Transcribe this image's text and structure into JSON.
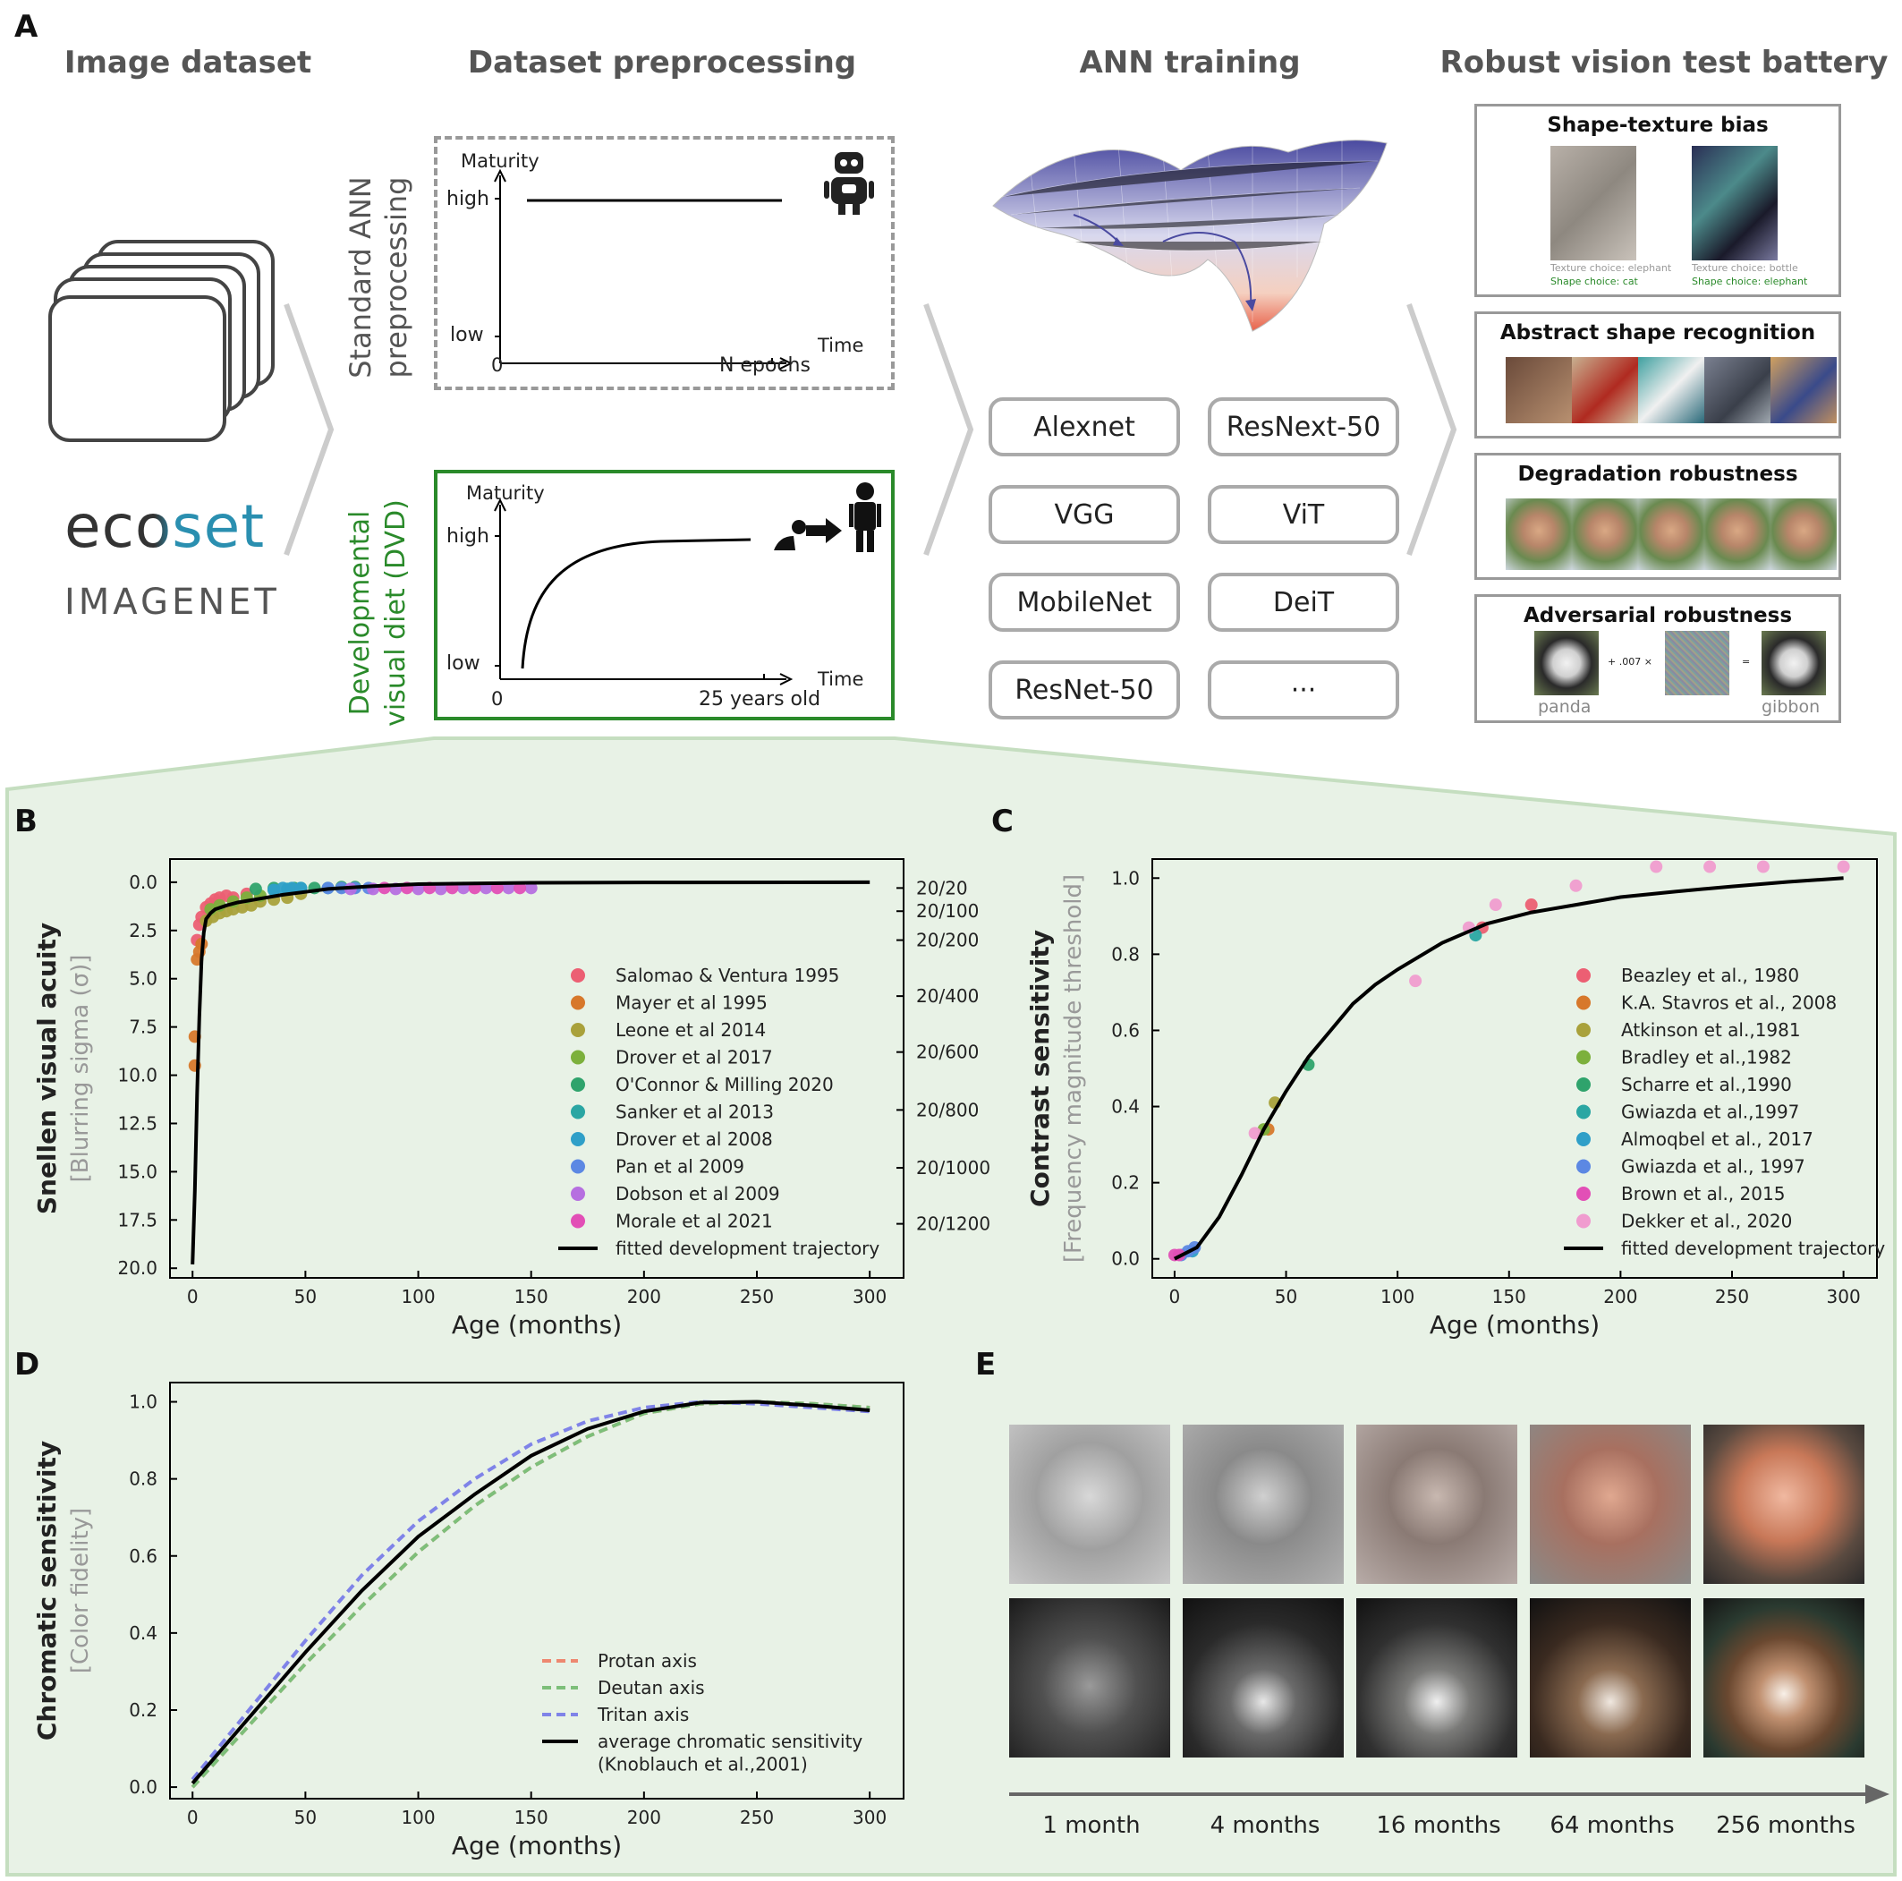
{
  "panel_letters": {
    "a": "A",
    "b": "B",
    "c": "C",
    "d": "D",
    "e": "E"
  },
  "section_titles": {
    "image_dataset": "Image dataset",
    "preprocessing": "Dataset preprocessing",
    "training": "ANN training",
    "battery": "Robust vision test battery"
  },
  "datasets": {
    "ecoset": "ecoset",
    "imagenet": "IMAGENET"
  },
  "standard": {
    "side_label_1": "Standard ANN",
    "side_label_2": "preprocessing",
    "y_title": "Maturity",
    "high": "high",
    "low": "low",
    "zero": "0",
    "x_title": "Time",
    "x_end": "N epochs"
  },
  "dvd": {
    "side_label_1": "Developmental",
    "side_label_2": "visual diet (DVD)",
    "y_title": "Maturity",
    "high": "high",
    "low": "low",
    "zero": "0",
    "x_title": "Time",
    "x_end": "25 years old"
  },
  "networks": [
    "Alexnet",
    "ResNext-50",
    "VGG",
    "ViT",
    "MobileNet",
    "DeiT",
    "ResNet-50",
    "···"
  ],
  "battery": {
    "shape_texture": {
      "title": "Shape-texture bias",
      "left_texture": "Texture choice: elephant",
      "left_shape": "Shape choice: cat",
      "right_texture": "Texture choice: bottle",
      "right_shape": "Shape choice: elephant"
    },
    "abstract": {
      "title": "Abstract shape recognition"
    },
    "degradation": {
      "title": "Degradation robustness"
    },
    "adversarial": {
      "title": "Adversarial robustness",
      "op": "+ .007 ×",
      "eq": "=",
      "left_label": "panda",
      "right_label": "gibbon"
    }
  },
  "colors": {
    "green_bg": "#e8f2e6",
    "green_border": "#c5dec0",
    "dvd_green": "#2a8a2a",
    "gray_border": "#aaaaaa"
  },
  "chart_data": [
    {
      "id": "B",
      "type": "scatter",
      "ylabel": "Snellen visual acuity",
      "ylabel2": "[Blurring sigma (σ)]",
      "xlabel": "Age (months)",
      "xlim": [
        -10,
        315
      ],
      "ylim": [
        20.5,
        -1.2
      ],
      "y_inverted": true,
      "xticks": [
        0,
        50,
        100,
        150,
        200,
        250,
        300
      ],
      "yticks": [
        "0.0",
        "2.5",
        "5.0",
        "7.5",
        "10.0",
        "12.5",
        "15.0",
        "17.5",
        "20.0"
      ],
      "right_ticks": [
        {
          "label": "20/20",
          "y": 0.3
        },
        {
          "label": "20/100",
          "y": 1.5
        },
        {
          "label": "20/200",
          "y": 3.0
        },
        {
          "label": "20/400",
          "y": 5.9
        },
        {
          "label": "20/600",
          "y": 8.8
        },
        {
          "label": "20/800",
          "y": 11.8
        },
        {
          "label": "20/1000",
          "y": 14.8
        },
        {
          "label": "20/1200",
          "y": 17.7
        }
      ],
      "series": [
        {
          "name": "Salomao & Ventura 1995",
          "color": "#ec5f73",
          "points": [
            [
              2,
              3
            ],
            [
              3,
              2.2
            ],
            [
              4,
              1.8
            ],
            [
              6,
              1.3
            ],
            [
              8,
              1.1
            ],
            [
              10,
              0.9
            ],
            [
              12,
              0.8
            ],
            [
              15,
              0.7
            ],
            [
              18,
              0.8
            ],
            [
              24,
              0.6
            ]
          ]
        },
        {
          "name": "Mayer et al 1995",
          "color": "#d7782b",
          "points": [
            [
              1,
              9.5
            ],
            [
              1,
              8
            ],
            [
              2,
              4
            ],
            [
              3,
              3.6
            ],
            [
              4,
              3.2
            ]
          ]
        },
        {
          "name": "Leone et al 2014",
          "color": "#a9a13b",
          "points": [
            [
              6,
              2
            ],
            [
              9,
              1.8
            ],
            [
              12,
              1.6
            ],
            [
              15,
              1.5
            ],
            [
              18,
              1.4
            ],
            [
              22,
              1.3
            ],
            [
              26,
              1.2
            ],
            [
              30,
              1.0
            ],
            [
              36,
              0.9
            ],
            [
              42,
              0.8
            ],
            [
              48,
              0.6
            ]
          ]
        },
        {
          "name": "Drover et al 2017",
          "color": "#7cb03c",
          "points": [
            [
              8,
              1.4
            ],
            [
              12,
              1.2
            ],
            [
              18,
              1.0
            ],
            [
              24,
              0.8
            ],
            [
              30,
              0.7
            ]
          ]
        },
        {
          "name": "O'Connor & Milling 2020",
          "color": "#2fa36c",
          "points": [
            [
              28,
              0.35
            ],
            [
              36,
              0.3
            ],
            [
              45,
              0.3
            ],
            [
              54,
              0.3
            ],
            [
              66,
              0.25
            ],
            [
              72,
              0.25
            ]
          ]
        },
        {
          "name": "Sanker et al 2013",
          "color": "#2aa6a3",
          "points": [
            [
              36,
              0.4
            ],
            [
              42,
              0.35
            ],
            [
              48,
              0.3
            ],
            [
              60,
              0.3
            ]
          ]
        },
        {
          "name": "Drover et al 2008",
          "color": "#2f9fc8",
          "points": [
            [
              36,
              0.4
            ],
            [
              40,
              0.3
            ],
            [
              44,
              0.3
            ],
            [
              48,
              0.3
            ]
          ]
        },
        {
          "name": "Pan et al 2009",
          "color": "#5c88e3",
          "points": [
            [
              60,
              0.3
            ],
            [
              66,
              0.3
            ],
            [
              72,
              0.3
            ],
            [
              78,
              0.3
            ]
          ]
        },
        {
          "name": "Dobson et al 2009",
          "color": "#b66fe0",
          "points": [
            [
              70,
              0.35
            ],
            [
              80,
              0.35
            ],
            [
              90,
              0.35
            ],
            [
              100,
              0.35
            ],
            [
              110,
              0.35
            ],
            [
              120,
              0.3
            ],
            [
              130,
              0.3
            ],
            [
              140,
              0.3
            ],
            [
              150,
              0.3
            ]
          ]
        },
        {
          "name": "Morale et al 2021",
          "color": "#e24fb6",
          "points": [
            [
              85,
              0.3
            ],
            [
              95,
              0.3
            ],
            [
              105,
              0.3
            ],
            [
              115,
              0.3
            ],
            [
              125,
              0.3
            ],
            [
              135,
              0.3
            ],
            [
              145,
              0.3
            ]
          ]
        }
      ],
      "fit": {
        "name": "fitted development trajectory",
        "points": [
          [
            0,
            19.8
          ],
          [
            1,
            16
          ],
          [
            2,
            11
          ],
          [
            3,
            7
          ],
          [
            4,
            4
          ],
          [
            5,
            2.6
          ],
          [
            6,
            1.9
          ],
          [
            8,
            1.6
          ],
          [
            10,
            1.4
          ],
          [
            15,
            1.2
          ],
          [
            20,
            1.05
          ],
          [
            30,
            0.85
          ],
          [
            40,
            0.65
          ],
          [
            50,
            0.5
          ],
          [
            60,
            0.35
          ],
          [
            80,
            0.2
          ],
          [
            100,
            0.1
          ],
          [
            150,
            0.03
          ],
          [
            200,
            0.01
          ],
          [
            300,
            0.0
          ]
        ]
      }
    },
    {
      "id": "C",
      "type": "scatter",
      "ylabel": "Contrast sensitivity",
      "ylabel2": "[Frequency magnitude threshold]",
      "xlabel": "Age (months)",
      "xlim": [
        -10,
        315
      ],
      "ylim": [
        -0.05,
        1.05
      ],
      "xticks": [
        0,
        50,
        100,
        150,
        200,
        250,
        300
      ],
      "yticks": [
        "0.0",
        "0.2",
        "0.4",
        "0.6",
        "0.8",
        "1.0"
      ],
      "series": [
        {
          "name": "Beazley et al., 1980",
          "color": "#ec5f73",
          "points": [
            [
              138,
              0.87
            ],
            [
              160,
              0.93
            ]
          ]
        },
        {
          "name": "K.A. Stavros et al., 2008",
          "color": "#d7782b",
          "points": [
            [
              42,
              0.34
            ]
          ]
        },
        {
          "name": "Atkinson et al.,1981",
          "color": "#a9a13b",
          "points": [
            [
              45,
              0.41
            ]
          ]
        },
        {
          "name": "Bradley et al.,1982",
          "color": "#7cb03c",
          "points": [
            [
              40,
              0.34
            ]
          ]
        },
        {
          "name": "Scharre et al.,1990",
          "color": "#2fa36c",
          "points": [
            [
              60,
              0.51
            ]
          ]
        },
        {
          "name": "Gwiazda et al.,1997",
          "color": "#2aa6a3",
          "points": [
            [
              135,
              0.85
            ]
          ]
        },
        {
          "name": "Almoqbel et al., 2017",
          "color": "#2f9fc8",
          "points": [
            [
              8,
              0.02
            ]
          ]
        },
        {
          "name": "Gwiazda et al., 1997",
          "color": "#5c88e3",
          "points": [
            [
              3,
              0.01
            ],
            [
              6,
              0.02
            ],
            [
              9,
              0.03
            ]
          ]
        },
        {
          "name": "Brown et al., 2015",
          "color": "#e24fb6",
          "points": [
            [
              0,
              0.01
            ],
            [
              2,
              0.01
            ]
          ]
        },
        {
          "name": "Dekker et al., 2020",
          "color": "#f09ccf",
          "points": [
            [
              36,
              0.33
            ],
            [
              108,
              0.73
            ],
            [
              132,
              0.87
            ],
            [
              144,
              0.93
            ],
            [
              180,
              0.98
            ],
            [
              216,
              1.03
            ],
            [
              240,
              1.03
            ],
            [
              264,
              1.03
            ],
            [
              300,
              1.03
            ]
          ]
        }
      ],
      "fit": {
        "name": "fitted development trajectory",
        "points": [
          [
            0,
            0.0
          ],
          [
            10,
            0.03
          ],
          [
            20,
            0.11
          ],
          [
            30,
            0.22
          ],
          [
            40,
            0.34
          ],
          [
            50,
            0.44
          ],
          [
            60,
            0.53
          ],
          [
            70,
            0.6
          ],
          [
            80,
            0.67
          ],
          [
            90,
            0.72
          ],
          [
            100,
            0.76
          ],
          [
            120,
            0.83
          ],
          [
            140,
            0.88
          ],
          [
            160,
            0.91
          ],
          [
            180,
            0.93
          ],
          [
            200,
            0.95
          ],
          [
            225,
            0.965
          ],
          [
            250,
            0.978
          ],
          [
            275,
            0.99
          ],
          [
            300,
            1.0
          ]
        ]
      }
    },
    {
      "id": "D",
      "type": "line",
      "ylabel": "Chromatic sensitivity",
      "ylabel2": "[Color fidelity]",
      "xlabel": "Age (months)",
      "xlim": [
        -10,
        315
      ],
      "ylim": [
        -0.03,
        1.05
      ],
      "xticks": [
        0,
        50,
        100,
        150,
        200,
        250,
        300
      ],
      "yticks": [
        "0.0",
        "0.2",
        "0.4",
        "0.6",
        "0.8",
        "1.0"
      ],
      "series": [
        {
          "name": "Protan axis",
          "color": "#ee8870",
          "dash": true,
          "points": [
            [
              0,
              0.0
            ],
            [
              25,
              0.16
            ],
            [
              50,
              0.32
            ],
            [
              75,
              0.47
            ],
            [
              100,
              0.61
            ],
            [
              125,
              0.73
            ],
            [
              150,
              0.83
            ],
            [
              175,
              0.91
            ],
            [
              200,
              0.97
            ],
            [
              225,
              0.995
            ],
            [
              250,
              1.0
            ],
            [
              275,
              0.995
            ],
            [
              300,
              0.985
            ]
          ]
        },
        {
          "name": "Deutan axis",
          "color": "#7dbf7a",
          "dash": true,
          "points": [
            [
              0,
              0.0
            ],
            [
              25,
              0.16
            ],
            [
              50,
              0.32
            ],
            [
              75,
              0.47
            ],
            [
              100,
              0.61
            ],
            [
              125,
              0.73
            ],
            [
              150,
              0.83
            ],
            [
              175,
              0.91
            ],
            [
              200,
              0.97
            ],
            [
              225,
              0.995
            ],
            [
              250,
              1.0
            ],
            [
              275,
              0.995
            ],
            [
              300,
              0.985
            ]
          ]
        },
        {
          "name": "Tritan axis",
          "color": "#7f83e8",
          "dash": true,
          "points": [
            [
              0,
              0.02
            ],
            [
              25,
              0.2
            ],
            [
              50,
              0.38
            ],
            [
              75,
              0.55
            ],
            [
              100,
              0.69
            ],
            [
              125,
              0.8
            ],
            [
              150,
              0.89
            ],
            [
              175,
              0.95
            ],
            [
              200,
              0.985
            ],
            [
              225,
              1.0
            ],
            [
              250,
              0.995
            ],
            [
              275,
              0.985
            ],
            [
              300,
              0.975
            ]
          ]
        },
        {
          "name": "average chromatic sensitivity",
          "name2": "(Knoblauch et al.,2001)",
          "color": "#000000",
          "dash": false,
          "points": [
            [
              0,
              0.01
            ],
            [
              25,
              0.18
            ],
            [
              50,
              0.35
            ],
            [
              75,
              0.51
            ],
            [
              100,
              0.65
            ],
            [
              125,
              0.76
            ],
            [
              150,
              0.86
            ],
            [
              175,
              0.93
            ],
            [
              200,
              0.975
            ],
            [
              225,
              0.998
            ],
            [
              250,
              1.0
            ],
            [
              275,
              0.99
            ],
            [
              300,
              0.978
            ]
          ]
        }
      ]
    }
  ],
  "panel_e": {
    "ages": [
      "1 month",
      "4 months",
      "16 months",
      "64 months",
      "256 months"
    ]
  }
}
